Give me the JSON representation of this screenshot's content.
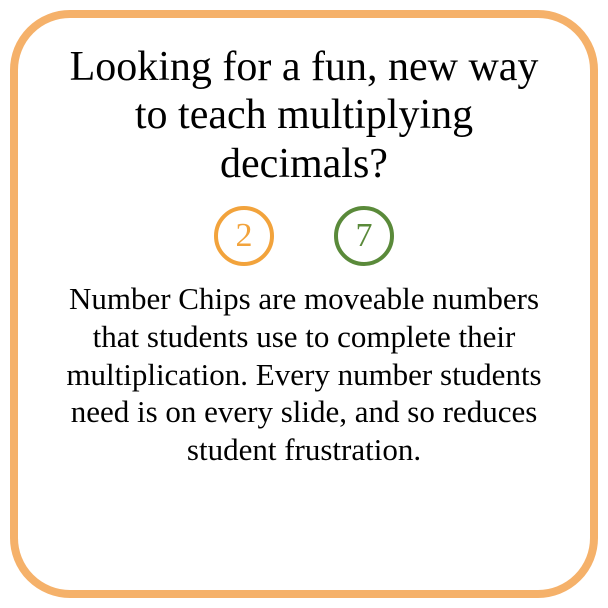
{
  "card": {
    "border_color": "#f5b16a",
    "border_width": 8,
    "border_radius": 60,
    "background": "#ffffff"
  },
  "heading": {
    "text": "Looking for a fun, new way to teach multiplying decimals?",
    "fontsize": 42,
    "color": "#000000"
  },
  "chips": [
    {
      "value": "2",
      "border_color": "#f2a33c",
      "text_color": "#f2a33c",
      "border_width": 4
    },
    {
      "value": "7",
      "border_color": "#5a8a3a",
      "text_color": "#5a8a3a",
      "border_width": 4
    }
  ],
  "body": {
    "text": "Number Chips are moveable numbers that students use to complete their multiplication. Every number students need is on every slide, and so reduces student frustration.",
    "fontsize": 31,
    "color": "#000000"
  }
}
